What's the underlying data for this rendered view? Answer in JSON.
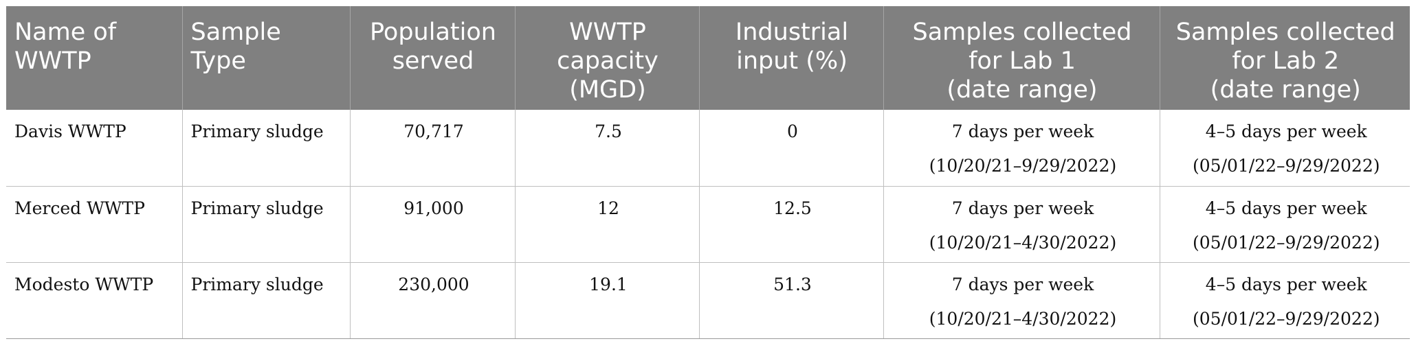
{
  "headers": [
    {
      "line1": "Name of",
      "line2": "WWTP",
      "line3": ""
    },
    {
      "line1": "Sample",
      "line2": "Type",
      "line3": ""
    },
    {
      "line1": "Population",
      "line2": "served",
      "line3": ""
    },
    {
      "line1": "WWTP",
      "line2": "capacity",
      "line3": "(MGD)"
    },
    {
      "line1": "Industrial",
      "line2": "input (%)",
      "line3": ""
    },
    {
      "line1": "Samples collected",
      "line2": "for Lab 1",
      "line3": "(date range)"
    },
    {
      "line1": "Samples collected",
      "line2": "for Lab 2",
      "line3": "(date range)"
    }
  ],
  "rows": [
    {
      "name": "Davis WWTP",
      "sample_type": "Primary sludge",
      "population": "70,717",
      "capacity": "7.5",
      "industrial": "0",
      "lab1_freq": "7 days per week",
      "lab1_range": "(10/20/21–9/29/2022)",
      "lab2_freq": "4–5 days per week",
      "lab2_range": "(05/01/22–9/29/2022)"
    },
    {
      "name": "Merced WWTP",
      "sample_type": "Primary sludge",
      "population": "91,000",
      "capacity": "12",
      "industrial": "12.5",
      "lab1_freq": "7 days per week",
      "lab1_range": "(10/20/21–4/30/2022)",
      "lab2_freq": "4–5 days per week",
      "lab2_range": "(05/01/22–9/29/2022)"
    },
    {
      "name": "Modesto WWTP",
      "sample_type": "Primary sludge",
      "population": "230,000",
      "capacity": "19.1",
      "industrial": "51.3",
      "lab1_freq": "7 days per week",
      "lab1_range": "(10/20/21–4/30/2022)",
      "lab2_freq": "4–5 days per week",
      "lab2_range": "(05/01/22–9/29/2022)"
    }
  ]
}
